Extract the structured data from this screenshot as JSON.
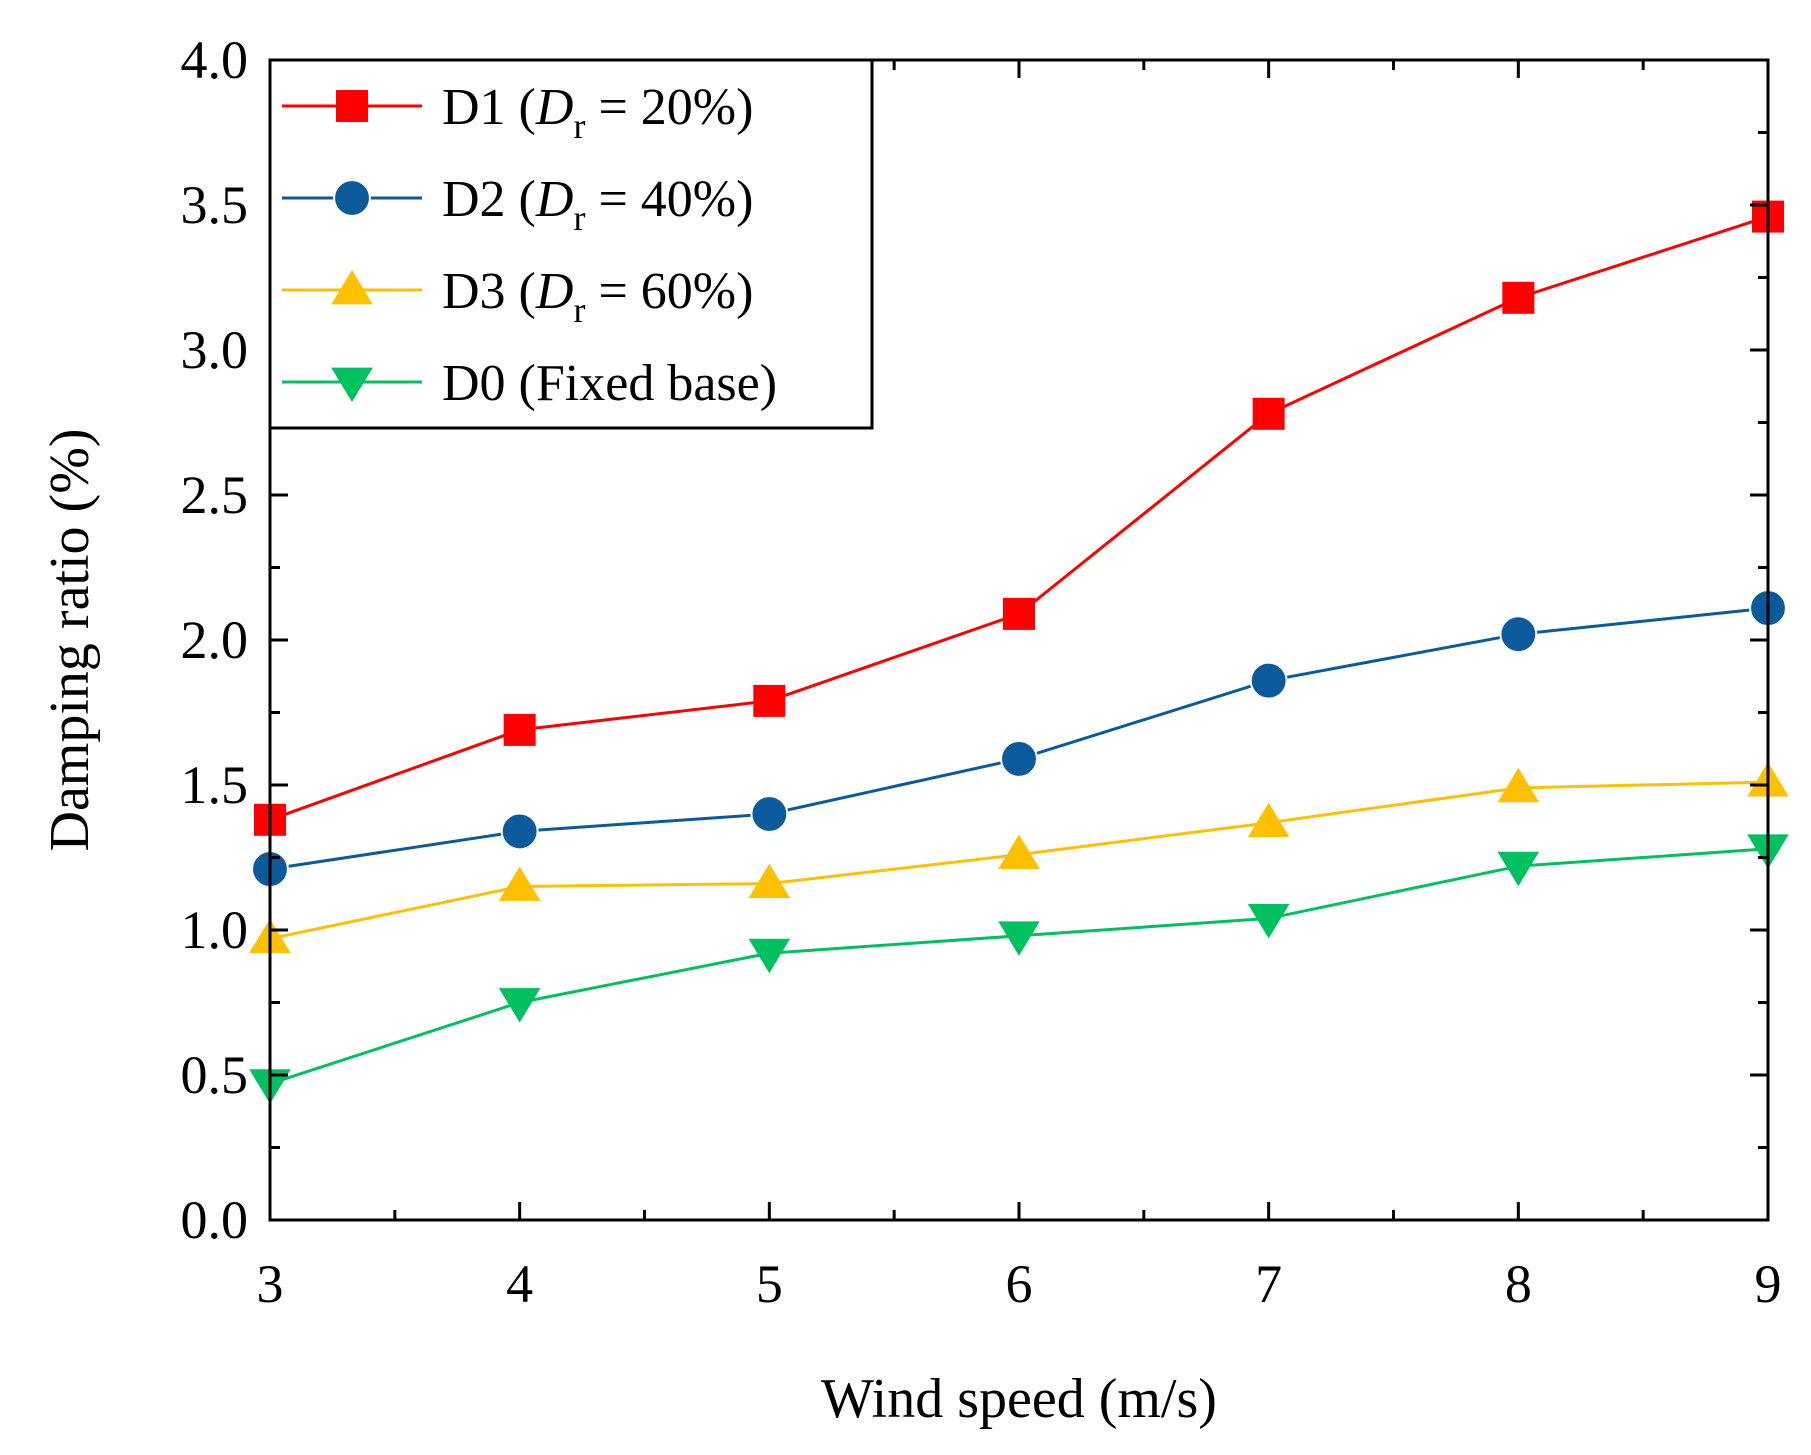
{
  "chart_data": {
    "type": "line",
    "title": "",
    "xlabel": "Wind speed (m/s)",
    "ylabel": "Damping ratio (%)",
    "xlim": [
      3,
      9
    ],
    "ylim": [
      0.0,
      4.0
    ],
    "x_ticks": [
      3,
      4,
      5,
      6,
      7,
      8,
      9
    ],
    "x_tick_labels": [
      "3",
      "4",
      "5",
      "6",
      "7",
      "8",
      "9"
    ],
    "y_ticks": [
      0.0,
      0.5,
      1.0,
      1.5,
      2.0,
      2.5,
      3.0,
      3.5,
      4.0
    ],
    "y_tick_labels": [
      "0.0",
      "0.5",
      "1.0",
      "1.5",
      "2.0",
      "2.5",
      "3.0",
      "3.5",
      "4.0"
    ],
    "grid": false,
    "legend_position": "top-left",
    "x": [
      3,
      4,
      5,
      6,
      7,
      8,
      9
    ],
    "series": [
      {
        "name": "D1 (Dr = 20%)",
        "legend_prefix": "D1 (",
        "legend_italic": "D",
        "legend_sub": "r",
        "legend_suffix": " = 20%)",
        "color": "#ff0000",
        "marker": "square",
        "values": [
          1.38,
          1.69,
          1.79,
          2.09,
          2.78,
          3.18,
          3.46
        ]
      },
      {
        "name": "D2 (Dr = 40%)",
        "legend_prefix": "D2 (",
        "legend_italic": "D",
        "legend_sub": "r",
        "legend_suffix": " = 40%)",
        "color": "#0a5a9c",
        "marker": "circle",
        "values": [
          1.21,
          1.34,
          1.4,
          1.59,
          1.86,
          2.02,
          2.11
        ]
      },
      {
        "name": "D3 (Dr = 60%)",
        "legend_prefix": "D3 (",
        "legend_italic": "D",
        "legend_sub": "r",
        "legend_suffix": " = 60%)",
        "color": "#ffc000",
        "marker": "triangle-up",
        "values": [
          0.97,
          1.15,
          1.16,
          1.26,
          1.37,
          1.49,
          1.51
        ]
      },
      {
        "name": "D0 (Fixed base)",
        "legend_prefix": "D0 (Fixed base)",
        "legend_italic": "",
        "legend_sub": "",
        "legend_suffix": "",
        "color": "#00c060",
        "marker": "triangle-down",
        "values": [
          0.47,
          0.75,
          0.92,
          0.98,
          1.04,
          1.22,
          1.28
        ]
      }
    ]
  }
}
